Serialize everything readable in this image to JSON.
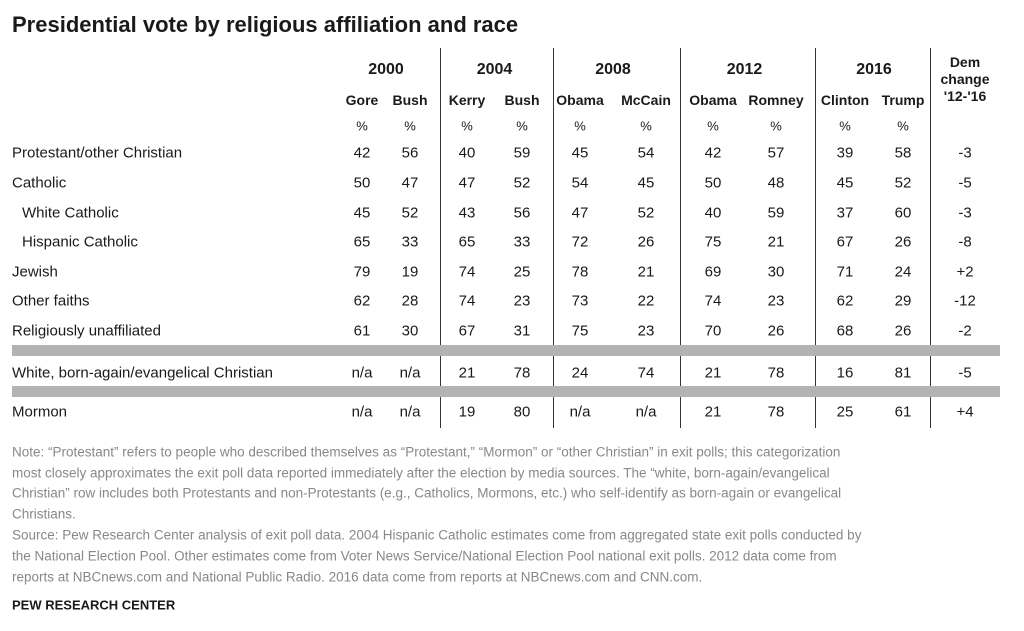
{
  "title": "Presidential vote by religious affiliation and race",
  "table": {
    "years": [
      "2000",
      "2004",
      "2008",
      "2012",
      "2016"
    ],
    "candidates": [
      "Gore",
      "Bush",
      "Kerry",
      "Bush",
      "Obama",
      "McCain",
      "Obama",
      "Romney",
      "Clinton",
      "Trump"
    ],
    "units": [
      "%",
      "%",
      "%",
      "%",
      "%",
      "%",
      "%",
      "%",
      "%",
      "%"
    ],
    "change_header": [
      "Dem",
      "change",
      "'12-'16"
    ],
    "rows": [
      {
        "label": "Protestant/other Christian",
        "cells": [
          "42",
          "56",
          "40",
          "59",
          "45",
          "54",
          "42",
          "57",
          "39",
          "58",
          "-3"
        ]
      },
      {
        "label": "Catholic",
        "cells": [
          "50",
          "47",
          "47",
          "52",
          "54",
          "45",
          "50",
          "48",
          "45",
          "52",
          "-5"
        ]
      },
      {
        "label": "White Catholic",
        "cells": [
          "45",
          "52",
          "43",
          "56",
          "47",
          "52",
          "40",
          "59",
          "37",
          "60",
          "-3"
        ]
      },
      {
        "label": "Hispanic Catholic",
        "cells": [
          "65",
          "33",
          "65",
          "33",
          "72",
          "26",
          "75",
          "21",
          "67",
          "26",
          "-8"
        ]
      },
      {
        "label": "Jewish",
        "cells": [
          "79",
          "19",
          "74",
          "25",
          "78",
          "21",
          "69",
          "30",
          "71",
          "24",
          "+2"
        ]
      },
      {
        "label": "Other faiths",
        "cells": [
          "62",
          "28",
          "74",
          "23",
          "73",
          "22",
          "74",
          "23",
          "62",
          "29",
          "-12"
        ]
      },
      {
        "label": "Religiously unaffiliated",
        "cells": [
          "61",
          "30",
          "67",
          "31",
          "75",
          "23",
          "70",
          "26",
          "68",
          "26",
          "-2"
        ]
      },
      {
        "label": "White, born-again/evangelical Christian",
        "cells": [
          "n/a",
          "n/a",
          "21",
          "78",
          "24",
          "74",
          "21",
          "78",
          "16",
          "81",
          "-5"
        ]
      },
      {
        "label": "Mormon",
        "cells": [
          "n/a",
          "n/a",
          "19",
          "80",
          "n/a",
          "n/a",
          "21",
          "78",
          "25",
          "61",
          "+4"
        ]
      }
    ]
  },
  "note_lines": [
    "Note: “Protestant” refers to people who described themselves as “Protestant,” “Mormon” or “other Christian” in exit polls; this categorization",
    "most closely approximates the exit poll data reported immediately after the election by media sources. The “white, born-again/evangelical",
    "Christian” row includes both Protestants and non-Protestants (e.g., Catholics, Mormons, etc.) who self-identify as born-again or evangelical",
    "Christians."
  ],
  "source_lines": [
    "Source: Pew Research Center analysis of exit poll data. 2004 Hispanic Catholic estimates come from aggregated state exit polls conducted by",
    "the National Election Pool. Other estimates come from Voter News Service/National Election Pool national exit polls. 2012 data come from",
    "reports at NBCnews.com and National Public Radio. 2016 data come from reports at NBCnews.com and CNN.com."
  ],
  "footer": "PEW RESEARCH CENTER"
}
